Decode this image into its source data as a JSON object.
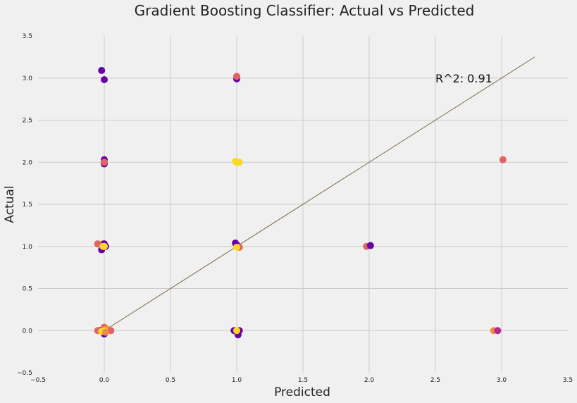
{
  "chart_data": {
    "type": "scatter",
    "title": "Gradient Boosting Classifier: Actual vs Predicted",
    "xlabel": "Predicted",
    "ylabel": "Actual",
    "xlim": [
      -0.5,
      3.5
    ],
    "ylim": [
      -0.5,
      3.5
    ],
    "xticks": [
      "−0.5",
      "0.0",
      "0.5",
      "1.0",
      "1.5",
      "2.0",
      "2.5",
      "3.0",
      "3.5"
    ],
    "yticks": [
      "−0.5",
      "0.0",
      "0.5",
      "1.0",
      "1.5",
      "2.0",
      "2.5",
      "3.0",
      "3.5"
    ],
    "xtick_values": [
      -0.5,
      0,
      0.5,
      1,
      1.5,
      2,
      2.5,
      3,
      3.5
    ],
    "ytick_values": [
      -0.5,
      0,
      0.5,
      1,
      1.5,
      2,
      2.5,
      3,
      3.5
    ],
    "grid": true,
    "annotation": "R^2: 0.91",
    "annotation_position": [
      2.5,
      3.0
    ],
    "reference_line": {
      "x": [
        0,
        3.25
      ],
      "y": [
        0,
        3.25
      ],
      "color": "#7a6a45"
    },
    "colors": {
      "purple": "#6a00a8",
      "magenta": "#b12a90",
      "salmon": "#e16462",
      "orange": "#f0884a",
      "yellow": "#f9d924"
    },
    "points": [
      {
        "x": -0.02,
        "y": 3.09,
        "c": "#6a00a8"
      },
      {
        "x": 0.0,
        "y": 2.98,
        "c": "#6a00a8"
      },
      {
        "x": 1.0,
        "y": 2.99,
        "c": "#6a00a8"
      },
      {
        "x": 1.0,
        "y": 3.02,
        "c": "#e16462"
      },
      {
        "x": 0.0,
        "y": 2.03,
        "c": "#6a00a8"
      },
      {
        "x": 0.0,
        "y": 1.98,
        "c": "#6a00a8"
      },
      {
        "x": 0.0,
        "y": 2.0,
        "c": "#e16462"
      },
      {
        "x": 1.0,
        "y": 2.0,
        "c": "#f9d924"
      },
      {
        "x": 0.99,
        "y": 2.01,
        "c": "#f9d924"
      },
      {
        "x": 1.02,
        "y": 2.0,
        "c": "#f9d924"
      },
      {
        "x": 3.01,
        "y": 2.03,
        "c": "#e16462"
      },
      {
        "x": -0.05,
        "y": 1.03,
        "c": "#e16462"
      },
      {
        "x": -0.02,
        "y": 0.96,
        "c": "#6a00a8"
      },
      {
        "x": -0.01,
        "y": 1.03,
        "c": "#e16462"
      },
      {
        "x": 0.0,
        "y": 1.03,
        "c": "#6a00a8"
      },
      {
        "x": 0.01,
        "y": 1.0,
        "c": "#6a00a8"
      },
      {
        "x": 0.0,
        "y": 1.0,
        "c": "#f9d924"
      },
      {
        "x": -0.01,
        "y": 1.0,
        "c": "#f9d924"
      },
      {
        "x": 0.99,
        "y": 1.04,
        "c": "#6a00a8"
      },
      {
        "x": 1.0,
        "y": 1.02,
        "c": "#6a00a8"
      },
      {
        "x": 1.02,
        "y": 0.99,
        "c": "#e16462"
      },
      {
        "x": 1.0,
        "y": 0.99,
        "c": "#f9d924"
      },
      {
        "x": 1.98,
        "y": 1.0,
        "c": "#e16462"
      },
      {
        "x": 2.01,
        "y": 1.01,
        "c": "#6a00a8"
      },
      {
        "x": -0.04,
        "y": 0.0,
        "c": "#f0884a"
      },
      {
        "x": -0.03,
        "y": 0.0,
        "c": "#6a00a8"
      },
      {
        "x": -0.05,
        "y": 0.0,
        "c": "#e16462"
      },
      {
        "x": 0.0,
        "y": -0.04,
        "c": "#6a00a8"
      },
      {
        "x": 0.0,
        "y": 0.04,
        "c": "#e16462"
      },
      {
        "x": 0.02,
        "y": 0.02,
        "c": "#f0884a"
      },
      {
        "x": 0.05,
        "y": 0.0,
        "c": "#e16462"
      },
      {
        "x": 0.0,
        "y": 0.0,
        "c": "#f9d924"
      },
      {
        "x": -0.02,
        "y": -0.01,
        "c": "#f9d924"
      },
      {
        "x": 0.01,
        "y": -0.02,
        "c": "#f0884a"
      },
      {
        "x": 0.98,
        "y": 0.0,
        "c": "#6a00a8"
      },
      {
        "x": 1.02,
        "y": 0.0,
        "c": "#6a00a8"
      },
      {
        "x": 1.01,
        "y": -0.05,
        "c": "#6a00a8"
      },
      {
        "x": 1.0,
        "y": 0.0,
        "c": "#f9d924"
      },
      {
        "x": 2.94,
        "y": 0.0,
        "c": "#f0884a"
      },
      {
        "x": 2.97,
        "y": 0.0,
        "c": "#b12a90"
      }
    ]
  }
}
